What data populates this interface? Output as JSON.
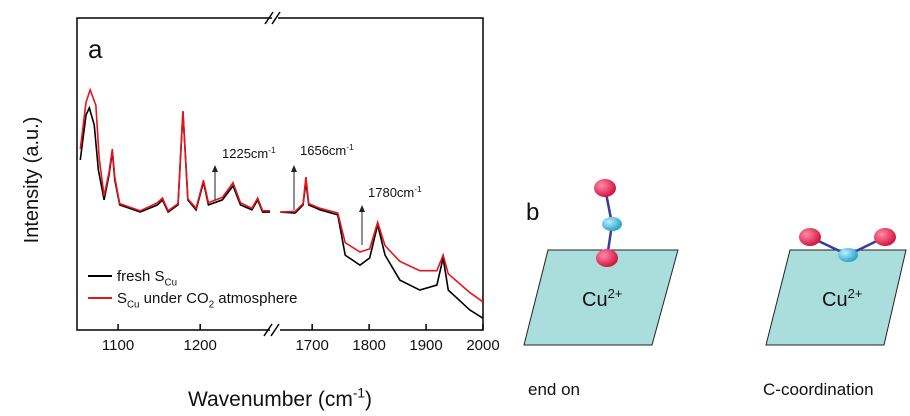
{
  "chart_data": [
    {
      "type": "line",
      "panel_label": "a",
      "y_label": "Intensity (a.u.)",
      "x_label_parts": [
        {
          "text": "Wavenumber (cm"
        },
        {
          "text": "-1",
          "sup": true
        },
        {
          "text": ")"
        }
      ],
      "xlim": [
        1050,
        1285
      ],
      "xticks": [
        1100,
        1200
      ],
      "ylim": [
        0,
        100
      ],
      "annotations": [
        {
          "parts": [
            {
              "text": "1225cm"
            },
            {
              "text": "-1",
              "sup": true
            }
          ]
        }
      ],
      "series": [
        {
          "name_parts": [
            {
              "text": "fresh S"
            },
            {
              "text": "Cu",
              "sub": true
            }
          ],
          "color": "#000000",
          "x": [
            1054,
            1061,
            1065,
            1071,
            1076,
            1083,
            1089,
            1093,
            1096,
            1102,
            1127,
            1148,
            1154,
            1161,
            1173,
            1179,
            1185,
            1195,
            1204,
            1210,
            1227,
            1240,
            1249,
            1263,
            1270,
            1276,
            1285
          ],
          "values": [
            54.5,
            68.9,
            71.2,
            65.7,
            51.3,
            41.7,
            49.7,
            57.1,
            48.1,
            40.1,
            37.8,
            40.1,
            41.7,
            37.8,
            40.1,
            69.9,
            41.7,
            38.5,
            47.4,
            40.1,
            41.7,
            46.2,
            40.1,
            38.5,
            41.7,
            37.8,
            37.8
          ]
        },
        {
          "name_parts": [
            {
              "text": "S"
            },
            {
              "text": "Cu",
              "sub": true
            },
            {
              "text": " under CO"
            },
            {
              "text": "2",
              "sub": true
            },
            {
              "text": " atmosphere"
            }
          ],
          "color": "#e8141c",
          "x": [
            1054,
            1061,
            1066,
            1073,
            1077,
            1083,
            1089,
            1093,
            1096,
            1102,
            1127,
            1148,
            1154,
            1161,
            1173,
            1179,
            1185,
            1195,
            1204,
            1210,
            1227,
            1240,
            1249,
            1263,
            1270,
            1276,
            1285
          ],
          "values": [
            58,
            73,
            77,
            72,
            55,
            43,
            50.5,
            58,
            49,
            40.5,
            38.2,
            40.8,
            42.3,
            38.2,
            40.5,
            70.2,
            42,
            39,
            48,
            40.8,
            42.5,
            47.2,
            40.8,
            39,
            42.3,
            38.2,
            38.2
          ]
        }
      ]
    },
    {
      "type": "line",
      "xlim": [
        1640,
        2000
      ],
      "xticks": [
        1700,
        1800,
        1900,
        2000
      ],
      "ylim": [
        0,
        100
      ],
      "annotations": [
        {
          "parts": [
            {
              "text": "1656cm"
            },
            {
              "text": "-1",
              "sup": true
            }
          ]
        },
        {
          "parts": [
            {
              "text": "1780cm"
            },
            {
              "text": "-1",
              "sup": true
            }
          ]
        }
      ],
      "series": [
        {
          "color": "#000000",
          "x": [
            1644,
            1670,
            1684,
            1689,
            1694,
            1714,
            1745,
            1758,
            1784,
            1801,
            1815,
            1828,
            1854,
            1889,
            1919,
            1930,
            1939,
            1977,
            2000
          ],
          "values": [
            37.8,
            37.5,
            40.1,
            47.4,
            40.1,
            38.5,
            36.9,
            24.0,
            20.8,
            23.1,
            33.7,
            24.0,
            16.0,
            12.8,
            14.4,
            23.1,
            12.8,
            6.4,
            3.8
          ]
        },
        {
          "color": "#e8141c",
          "x": [
            1644,
            1670,
            1684,
            1689,
            1694,
            1714,
            1745,
            1758,
            1784,
            1801,
            1815,
            1828,
            1854,
            1889,
            1919,
            1930,
            1939,
            1977,
            2000
          ],
          "values": [
            37.8,
            38,
            40.5,
            49,
            40.5,
            39,
            37.5,
            28,
            25,
            26,
            34.5,
            27,
            22,
            19,
            19,
            24,
            18,
            12,
            9
          ]
        }
      ]
    }
  ],
  "diagram": {
    "panel_label": "b",
    "ion": [
      {
        "text": "Cu"
      },
      {
        "text": "2+",
        "sup": true
      }
    ],
    "captions": [
      "end on",
      "C-coordination"
    ]
  }
}
